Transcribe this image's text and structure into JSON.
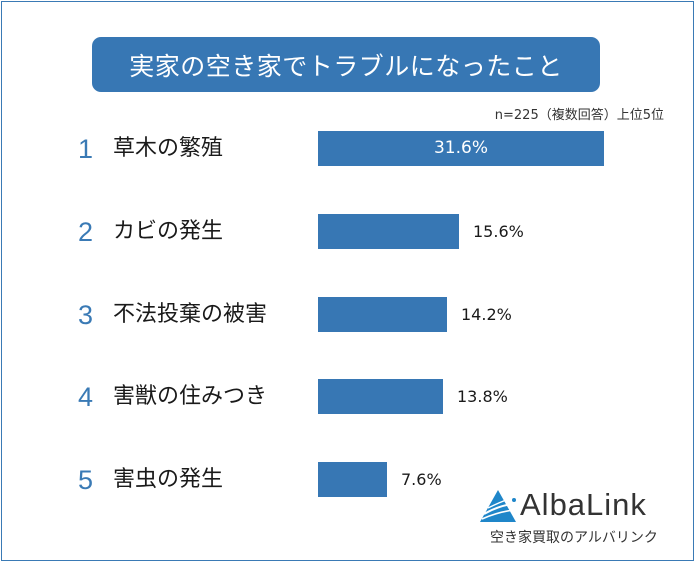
{
  "title": "実家の空き家でトラブルになったこと",
  "note": "n=225（複数回答）上位5位",
  "colors": {
    "bar": "#3777b4",
    "rank": "#3a7ab5",
    "frame": "#3a7ab5"
  },
  "items": [
    {
      "rank": "1",
      "label": "草木の繁殖",
      "value": 31.6,
      "value_label": "31.6%"
    },
    {
      "rank": "2",
      "label": "カビの発生",
      "value": 15.6,
      "value_label": "15.6%"
    },
    {
      "rank": "3",
      "label": "不法投棄の被害",
      "value": 14.2,
      "value_label": "14.2%"
    },
    {
      "rank": "4",
      "label": "害獣の住みつき",
      "value": 13.8,
      "value_label": "13.8%"
    },
    {
      "rank": "5",
      "label": "害虫の発生",
      "value": 7.6,
      "value_label": "7.6%"
    }
  ],
  "logo": {
    "name": "AlbaLink",
    "tagline": "空き家買取のアルバリンク"
  },
  "chart_data": {
    "type": "bar",
    "orientation": "horizontal",
    "title": "実家の空き家でトラブルになったこと",
    "subtitle": "n=225（複数回答）上位5位",
    "categories": [
      "草木の繁殖",
      "カビの発生",
      "不法投棄の被害",
      "害獣の住みつき",
      "害虫の発生"
    ],
    "values": [
      31.6,
      15.6,
      14.2,
      13.8,
      7.6
    ],
    "unit": "%",
    "xlabel": "",
    "ylabel": "",
    "grid": false,
    "legend": "none",
    "data_labels": true
  }
}
